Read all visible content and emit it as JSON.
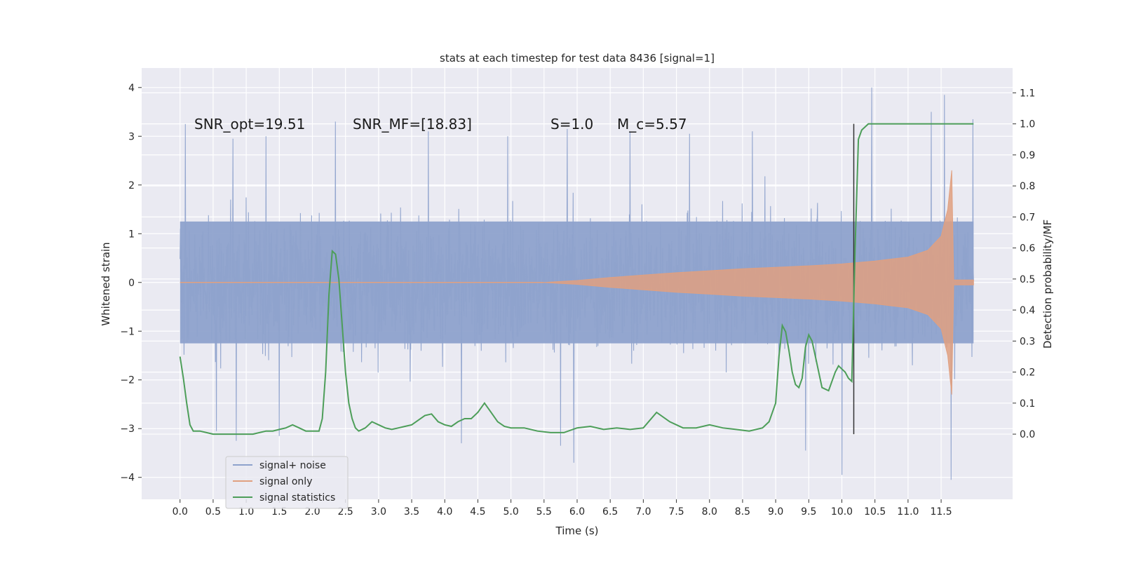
{
  "chart_data": {
    "type": "line",
    "title": "stats at each timestep for test data 8436 [signal=1]",
    "xlabel": "Time (s)",
    "ylabel": "Whitened strain",
    "y2label": "Detection probability/MF",
    "xlim": [
      -0.58,
      12.58
    ],
    "ylim": [
      -4.45,
      4.4
    ],
    "y2lim": [
      -0.21,
      1.18
    ],
    "xticks": [
      0.0,
      0.5,
      1.0,
      1.5,
      2.0,
      2.5,
      3.0,
      3.5,
      4.0,
      4.5,
      5.0,
      5.5,
      6.0,
      6.5,
      7.0,
      7.5,
      8.0,
      8.5,
      9.0,
      9.5,
      10.0,
      10.5,
      11.0,
      11.5
    ],
    "xtick_labels": [
      "0.0",
      "0.5",
      "1.0",
      "1.5",
      "2.0",
      "2.5",
      "3.0",
      "3.5",
      "4.0",
      "4.5",
      "5.0",
      "5.5",
      "6.0",
      "6.5",
      "7.0",
      "7.5",
      "8.0",
      "8.5",
      "9.0",
      "9.5",
      "10.0",
      "10.5",
      "11.0",
      "11.5"
    ],
    "yticks": [
      -4,
      -3,
      -2,
      -1,
      0,
      1,
      2,
      3,
      4
    ],
    "ytick_labels": [
      "−4",
      "−3",
      "−2",
      "−1",
      "0",
      "1",
      "2",
      "3",
      "4"
    ],
    "y2ticks": [
      0.0,
      0.1,
      0.2,
      0.3,
      0.4,
      0.5,
      0.6,
      0.7,
      0.8,
      0.9,
      1.0,
      1.1
    ],
    "y2tick_labels": [
      "0.0",
      "0.1",
      "0.2",
      "0.3",
      "0.4",
      "0.5",
      "0.6",
      "0.7",
      "0.8",
      "0.9",
      "1.0",
      "1.1"
    ],
    "grid": true,
    "legend_position": "lower-left",
    "annotations": [
      {
        "text": "SNR_opt=19.51",
        "x": 0.2,
        "y": 3.15
      },
      {
        "text": "SNR_MF=[18.83]",
        "x": 2.6,
        "y": 3.15
      },
      {
        "text": "S=1.0",
        "x": 5.6,
        "y": 3.15
      },
      {
        "text": "M_c=5.57",
        "x": 6.6,
        "y": 3.15
      }
    ],
    "vline": {
      "x": 10.18,
      "ymin": 0.0,
      "ymax": 1.0,
      "color": "#333333"
    },
    "series": [
      {
        "name": "signal+ noise",
        "color": "#8ea2cc",
        "t_start": 0.0,
        "t_end": 11.99,
        "band_approx": [
          [
            0.0,
            1.25
          ],
          [
            11.99,
            1.25
          ]
        ],
        "peaks": [
          [
            0.08,
            3.25
          ],
          [
            0.8,
            2.95
          ],
          [
            1.3,
            3.0
          ],
          [
            2.35,
            3.3
          ],
          [
            3.75,
            3.1
          ],
          [
            4.95,
            3.0
          ],
          [
            5.85,
            3.15
          ],
          [
            6.8,
            3.1
          ],
          [
            7.7,
            3.05
          ],
          [
            8.65,
            3.1
          ],
          [
            10.45,
            4.0
          ],
          [
            11.35,
            3.5
          ],
          [
            11.55,
            3.85
          ],
          [
            11.98,
            3.35
          ]
        ],
        "troughs": [
          [
            0.55,
            -3.05
          ],
          [
            0.85,
            -3.25
          ],
          [
            1.5,
            -3.15
          ],
          [
            4.25,
            -3.3
          ],
          [
            5.75,
            -3.35
          ],
          [
            5.95,
            -3.7
          ],
          [
            9.45,
            -3.45
          ],
          [
            10.0,
            -3.95
          ],
          [
            11.65,
            -4.05
          ]
        ]
      },
      {
        "name": "signal only",
        "color": "#e0a080",
        "envelope": [
          [
            5.5,
            0.0
          ],
          [
            6.0,
            0.04
          ],
          [
            6.5,
            0.1
          ],
          [
            7.0,
            0.15
          ],
          [
            7.5,
            0.2
          ],
          [
            8.0,
            0.24
          ],
          [
            8.5,
            0.28
          ],
          [
            9.0,
            0.31
          ],
          [
            9.5,
            0.34
          ],
          [
            10.0,
            0.38
          ],
          [
            10.5,
            0.44
          ],
          [
            11.0,
            0.52
          ],
          [
            11.3,
            0.66
          ],
          [
            11.5,
            0.95
          ],
          [
            11.6,
            1.5
          ],
          [
            11.66,
            2.3
          ],
          [
            11.69,
            0.05
          ],
          [
            11.99,
            0.05
          ]
        ]
      },
      {
        "name": "signal statistics",
        "color": "#4d9e59",
        "x": [
          0.0,
          0.05,
          0.1,
          0.15,
          0.2,
          0.3,
          0.4,
          0.5,
          0.6,
          0.7,
          0.8,
          0.9,
          1.0,
          1.1,
          1.2,
          1.3,
          1.4,
          1.5,
          1.6,
          1.7,
          1.8,
          1.9,
          2.0,
          2.1,
          2.15,
          2.2,
          2.25,
          2.3,
          2.35,
          2.4,
          2.45,
          2.5,
          2.55,
          2.6,
          2.65,
          2.7,
          2.8,
          2.9,
          3.0,
          3.1,
          3.2,
          3.3,
          3.4,
          3.5,
          3.6,
          3.7,
          3.8,
          3.9,
          4.0,
          4.1,
          4.2,
          4.3,
          4.4,
          4.5,
          4.6,
          4.7,
          4.8,
          4.9,
          5.0,
          5.2,
          5.4,
          5.6,
          5.8,
          6.0,
          6.2,
          6.4,
          6.6,
          6.8,
          7.0,
          7.2,
          7.4,
          7.6,
          7.8,
          8.0,
          8.2,
          8.4,
          8.6,
          8.8,
          8.9,
          9.0,
          9.05,
          9.1,
          9.15,
          9.2,
          9.25,
          9.3,
          9.35,
          9.4,
          9.45,
          9.5,
          9.55,
          9.6,
          9.65,
          9.7,
          9.8,
          9.9,
          9.95,
          10.0,
          10.05,
          10.1,
          10.15,
          10.2,
          10.25,
          10.3,
          10.4,
          10.6,
          10.8,
          11.0,
          11.5,
          11.99
        ],
        "y": [
          0.25,
          0.18,
          0.1,
          0.03,
          0.01,
          0.01,
          0.005,
          0.0,
          0.0,
          0.0,
          0.0,
          0.0,
          0.0,
          0.0,
          0.005,
          0.01,
          0.01,
          0.015,
          0.02,
          0.03,
          0.02,
          0.01,
          0.01,
          0.01,
          0.05,
          0.2,
          0.45,
          0.59,
          0.58,
          0.5,
          0.35,
          0.2,
          0.1,
          0.05,
          0.02,
          0.01,
          0.02,
          0.04,
          0.03,
          0.02,
          0.015,
          0.02,
          0.025,
          0.03,
          0.045,
          0.06,
          0.065,
          0.04,
          0.03,
          0.025,
          0.04,
          0.05,
          0.05,
          0.07,
          0.1,
          0.07,
          0.04,
          0.025,
          0.02,
          0.02,
          0.01,
          0.005,
          0.005,
          0.02,
          0.025,
          0.015,
          0.02,
          0.015,
          0.02,
          0.07,
          0.04,
          0.02,
          0.02,
          0.03,
          0.02,
          0.015,
          0.01,
          0.02,
          0.04,
          0.1,
          0.25,
          0.35,
          0.33,
          0.27,
          0.2,
          0.16,
          0.15,
          0.18,
          0.28,
          0.32,
          0.3,
          0.25,
          0.2,
          0.15,
          0.14,
          0.2,
          0.22,
          0.21,
          0.2,
          0.18,
          0.17,
          0.6,
          0.95,
          0.98,
          1.0,
          1.0,
          1.0,
          1.0,
          1.0,
          1.0
        ]
      }
    ]
  }
}
